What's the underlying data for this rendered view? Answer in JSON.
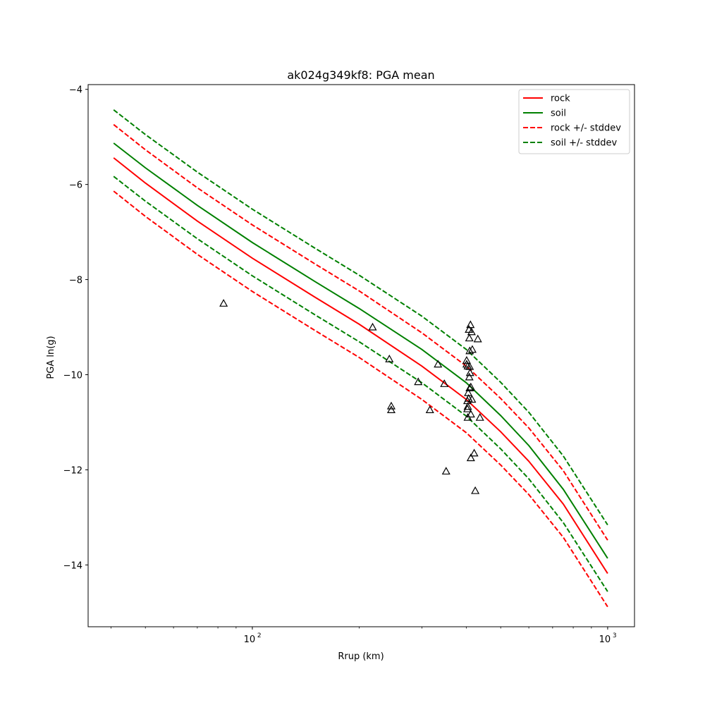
{
  "chart_data": {
    "type": "line",
    "title": "ak024g349kf8: PGA mean",
    "xlabel": "Rrup (km)",
    "ylabel": "PGA ln(g)",
    "xscale": "log",
    "xlim": [
      34.5,
      1190
    ],
    "ylim": [
      -15.3,
      -3.9
    ],
    "yticks": [
      -14,
      -12,
      -10,
      -8,
      -6,
      -4
    ],
    "ytick_labels": [
      "−14",
      "−12",
      "−10",
      "−8",
      "−6",
      "−4"
    ],
    "xticks": [
      100,
      1000
    ],
    "xtick_labels": [
      "10",
      "10"
    ],
    "xtick_exponents": [
      "2",
      "3"
    ],
    "grid": false,
    "legend_position": "upper right",
    "x": [
      40.7,
      50,
      70,
      100,
      150,
      200,
      300,
      400,
      500,
      600,
      750,
      1000
    ],
    "series": [
      {
        "name": "rock",
        "color": "#ff0000",
        "dash": false,
        "values": [
          -5.44,
          -5.97,
          -6.77,
          -7.55,
          -8.37,
          -8.94,
          -9.82,
          -10.52,
          -11.2,
          -11.82,
          -12.72,
          -14.18
        ]
      },
      {
        "name": "soil",
        "color": "#008000",
        "dash": false,
        "values": [
          -5.13,
          -5.65,
          -6.44,
          -7.22,
          -8.04,
          -8.61,
          -9.47,
          -10.17,
          -10.86,
          -11.49,
          -12.41,
          -13.86
        ]
      },
      {
        "name": "rock +/- stddev",
        "color": "#ff0000",
        "dash": true,
        "values": [
          -4.74,
          -5.27,
          -6.07,
          -6.85,
          -7.67,
          -8.24,
          -9.12,
          -9.82,
          -10.5,
          -11.12,
          -12.02,
          -13.48
        ]
      },
      {
        "name": "rock +/- stddev",
        "color": "#ff0000",
        "dash": true,
        "legend": false,
        "values": [
          -6.14,
          -6.67,
          -7.47,
          -8.25,
          -9.07,
          -9.64,
          -10.52,
          -11.22,
          -11.9,
          -12.52,
          -13.42,
          -14.88
        ]
      },
      {
        "name": "soil +/- stddev",
        "color": "#008000",
        "dash": true,
        "values": [
          -4.43,
          -4.95,
          -5.74,
          -6.52,
          -7.34,
          -7.91,
          -8.77,
          -9.47,
          -10.16,
          -10.79,
          -11.71,
          -13.16
        ]
      },
      {
        "name": "soil +/- stddev",
        "color": "#008000",
        "dash": true,
        "legend": false,
        "values": [
          -5.83,
          -6.35,
          -7.14,
          -7.92,
          -8.74,
          -9.31,
          -10.17,
          -10.87,
          -11.56,
          -12.19,
          -13.11,
          -14.56
        ]
      }
    ],
    "observations": {
      "marker": "triangle",
      "color": "#000000",
      "points": [
        [
          83,
          -8.5
        ],
        [
          218,
          -9.0
        ],
        [
          243,
          -9.67
        ],
        [
          246,
          -10.66
        ],
        [
          246,
          -10.74
        ],
        [
          293,
          -10.15
        ],
        [
          316,
          -10.74
        ],
        [
          333,
          -9.78
        ],
        [
          347,
          -10.19
        ],
        [
          351,
          -12.03
        ],
        [
          401,
          -9.7
        ],
        [
          401,
          -9.78
        ],
        [
          404,
          -9.82
        ],
        [
          405,
          -10.38
        ],
        [
          403,
          -10.55
        ],
        [
          403,
          -10.72
        ],
        [
          404,
          -10.67
        ],
        [
          404,
          -10.9
        ],
        [
          406,
          -10.5
        ],
        [
          407,
          -9.05
        ],
        [
          408,
          -9.23
        ],
        [
          408,
          -10.05
        ],
        [
          409,
          -9.5
        ],
        [
          409,
          -9.83
        ],
        [
          409,
          -10.28
        ],
        [
          410,
          -9.96
        ],
        [
          411,
          -8.95
        ],
        [
          412,
          -10.26
        ],
        [
          412,
          -11.75
        ],
        [
          412,
          -10.83
        ],
        [
          414,
          -9.1
        ],
        [
          415,
          -10.52
        ],
        [
          416,
          -9.47
        ],
        [
          421,
          -11.65
        ],
        [
          424,
          -12.44
        ],
        [
          431,
          -9.25
        ],
        [
          437,
          -10.9
        ]
      ]
    }
  }
}
